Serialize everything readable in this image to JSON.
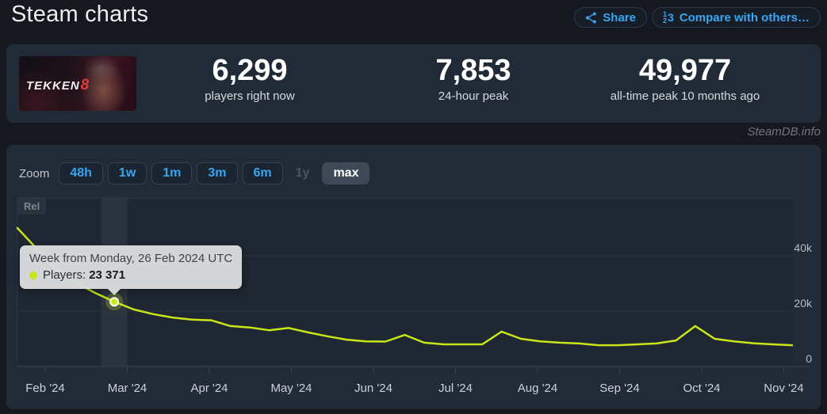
{
  "header": {
    "title": "Steam charts",
    "share_label": "Share",
    "compare_label": "Compare with others…"
  },
  "stats": {
    "game_name": "TEKKEN",
    "game_number": "8",
    "items": [
      {
        "value": "6,299",
        "label": "players right now"
      },
      {
        "value": "7,853",
        "label": "24-hour peak"
      },
      {
        "value": "49,977",
        "label": "all-time peak 10 months ago"
      }
    ]
  },
  "watermark": "SteamDB.info",
  "toolbar": {
    "zoom_label": "Zoom",
    "buttons": [
      {
        "label": "48h"
      },
      {
        "label": "1w"
      },
      {
        "label": "1m"
      },
      {
        "label": "3m"
      },
      {
        "label": "6m"
      },
      {
        "label": "1y",
        "disabled": true
      },
      {
        "label": "max",
        "selected": true
      }
    ]
  },
  "colors": {
    "accent_blue": "#37a6f3",
    "line": "#c8e617",
    "card_bg": "#212b38",
    "page_bg": "#15191f",
    "tooltip_bg": "#d9dbdd"
  },
  "chart_data": {
    "type": "line",
    "series": [
      {
        "name": "Players",
        "color": "#c8e617",
        "values": [
          49977,
          42500,
          35100,
          30300,
          26600,
          23371,
          20600,
          18900,
          17700,
          16900,
          16700,
          14600,
          14100,
          13100,
          13900,
          12300,
          10900,
          9700,
          9100,
          9000,
          11400,
          8600,
          8000,
          8000,
          8000,
          12600,
          10000,
          9100,
          8600,
          8300,
          7700,
          7700,
          8000,
          8300,
          9400,
          14600,
          10000,
          9100,
          8400,
          8000,
          7700
        ]
      }
    ],
    "x_ticks": [
      "Feb '24",
      "Mar '24",
      "Apr '24",
      "May '24",
      "Jun '24",
      "Jul '24",
      "Aug '24",
      "Sep '24",
      "Oct '24",
      "Nov '24"
    ],
    "y_ticks": [
      {
        "label": "40k",
        "value": 40000
      },
      {
        "label": "20k",
        "value": 20000
      },
      {
        "label": "0",
        "value": 0
      }
    ],
    "ylim": [
      0,
      60860
    ],
    "grid": "horizontal",
    "legend": "none",
    "release_flag_label": "Rel",
    "tooltip": {
      "title": "Week from Monday, 26 Feb 2024 UTC",
      "series_label": "Players:",
      "value": "23 371",
      "point_index": 5
    }
  }
}
